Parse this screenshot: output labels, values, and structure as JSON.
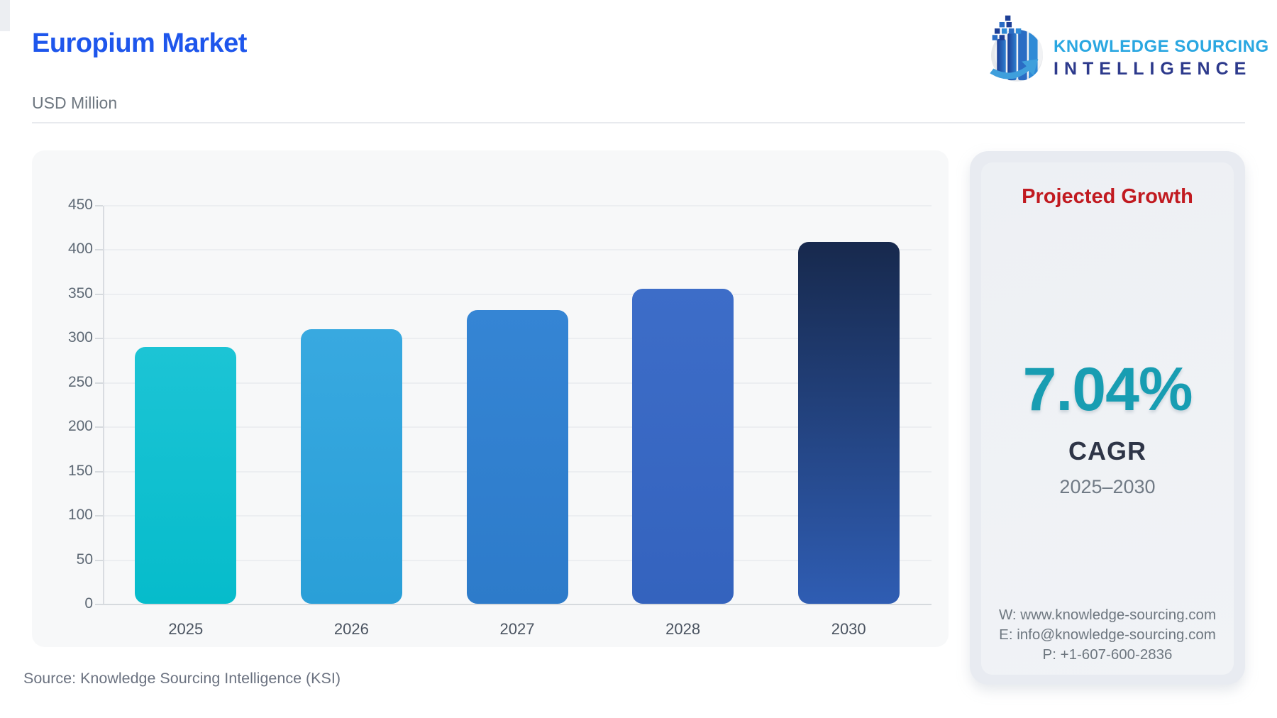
{
  "header": {
    "title": "Europium Market",
    "subtitle": "USD Million",
    "logo": {
      "line1": "KNOWLEDGE SOURCING",
      "line2": "INTELLIGENCE",
      "line1_color": "#2aa7e1",
      "line2_color": "#2d3a8c"
    }
  },
  "chart_data": {
    "type": "bar",
    "title": "Europium Market",
    "ylabel": "USD Million",
    "xlabel": "",
    "categories": [
      "2025",
      "2026",
      "2027",
      "2028",
      "2030"
    ],
    "values": [
      290,
      310,
      331,
      355,
      408
    ],
    "ylim": [
      0,
      450
    ],
    "yticks": [
      450,
      400,
      350,
      300,
      250,
      200,
      150,
      100,
      50,
      0
    ],
    "grid": true,
    "legend": "none",
    "bar_colors": [
      {
        "top": "#1cc4d5",
        "bottom": "#06bccb"
      },
      {
        "top": "#38a9e0",
        "bottom": "#2a9fd8"
      },
      {
        "top": "#3585d4",
        "bottom": "#2d7bca"
      },
      {
        "top": "#3d6dc8",
        "bottom": "#3463be"
      },
      {
        "top": "#17294d",
        "bottom": "#2f5db3"
      }
    ]
  },
  "panel": {
    "title": "Projected Growth",
    "title_color": "#c11a20",
    "cagr_value": "7.04%",
    "cagr_value_color": "#189db2",
    "cagr_label": "CAGR",
    "period": "2025–2030",
    "contact": {
      "website": "W: www.knowledge-sourcing.com",
      "email": "E: info@knowledge-sourcing.com",
      "phone": "P: +1-607-600-2836"
    }
  },
  "footer": {
    "source": "Source: Knowledge Sourcing Intelligence (KSI)"
  }
}
